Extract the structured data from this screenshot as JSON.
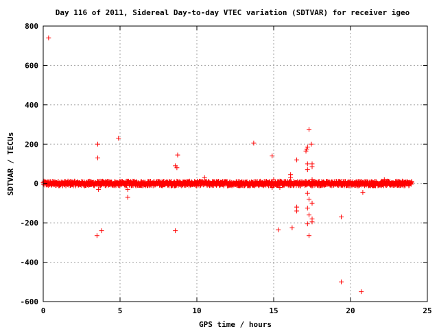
{
  "chart_data": {
    "type": "scatter",
    "title": "Day 116 of 2011, Sidereal Day-to-day VTEC variation (SDTVAR) for receiver igeo",
    "xlabel": "GPS time / hours",
    "ylabel": "SDTVAR / TECUs",
    "xlim": [
      0,
      25
    ],
    "ylim": [
      -600,
      800
    ],
    "xticks": [
      "0",
      "5",
      "10",
      "15",
      "20",
      "25"
    ],
    "yticks": [
      "-600",
      "-400",
      "-200",
      "0",
      "200",
      "400",
      "600",
      "800"
    ],
    "grid": true,
    "marker": "+",
    "color": "#ff0000",
    "dense_band": {
      "x_range": [
        0.0,
        24.0
      ],
      "y_range": [
        -12,
        12
      ],
      "approx_points": 1400
    },
    "points": [
      [
        0.35,
        740
      ],
      [
        3.55,
        200
      ],
      [
        3.55,
        130
      ],
      [
        3.5,
        -265
      ],
      [
        3.6,
        -30
      ],
      [
        3.8,
        -240
      ],
      [
        4.9,
        230
      ],
      [
        5.5,
        -30
      ],
      [
        5.5,
        -70
      ],
      [
        8.6,
        90
      ],
      [
        8.7,
        80
      ],
      [
        8.75,
        145
      ],
      [
        8.6,
        -240
      ],
      [
        10.5,
        30
      ],
      [
        13.7,
        205
      ],
      [
        14.9,
        140
      ],
      [
        15.0,
        20
      ],
      [
        14.9,
        -20
      ],
      [
        15.3,
        -235
      ],
      [
        15.4,
        -20
      ],
      [
        16.1,
        45
      ],
      [
        16.1,
        30
      ],
      [
        16.2,
        -225
      ],
      [
        16.5,
        120
      ],
      [
        16.5,
        -120
      ],
      [
        16.5,
        -140
      ],
      [
        17.1,
        165
      ],
      [
        17.15,
        175
      ],
      [
        17.2,
        185
      ],
      [
        17.3,
        275
      ],
      [
        17.45,
        200
      ],
      [
        17.2,
        100
      ],
      [
        17.5,
        100
      ],
      [
        17.5,
        85
      ],
      [
        17.2,
        70
      ],
      [
        17.5,
        20
      ],
      [
        17.2,
        -50
      ],
      [
        17.3,
        -80
      ],
      [
        17.5,
        -100
      ],
      [
        17.2,
        -125
      ],
      [
        17.3,
        -160
      ],
      [
        17.5,
        -180
      ],
      [
        17.5,
        -195
      ],
      [
        17.2,
        -205
      ],
      [
        17.3,
        -265
      ],
      [
        19.4,
        -170
      ],
      [
        19.4,
        -500
      ],
      [
        20.7,
        -550
      ],
      [
        20.8,
        -45
      ],
      [
        22.2,
        20
      ]
    ]
  }
}
